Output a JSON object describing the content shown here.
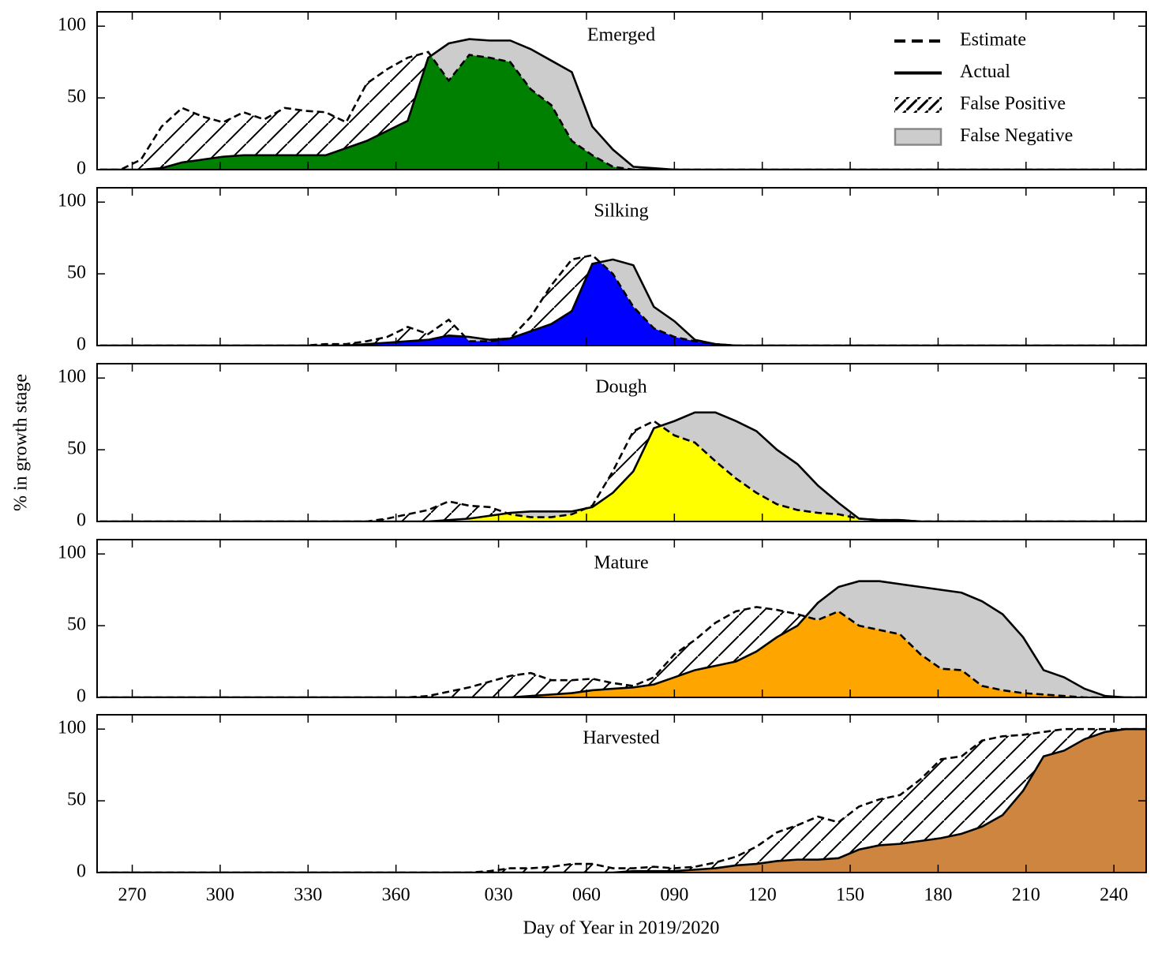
{
  "chart_data": [
    {
      "type": "area",
      "title": "Emerged",
      "color": "#008000",
      "xlim": [
        258,
        616
      ],
      "ylim": [
        0,
        110
      ],
      "yticks": [
        0,
        50,
        100
      ],
      "legend": "upper right",
      "fill_legend": [
        "False Positive",
        "False Negative"
      ],
      "x": [
        259,
        266,
        273,
        280,
        287,
        294,
        301,
        308,
        315,
        322,
        329,
        336,
        343,
        350,
        357,
        364,
        371,
        378,
        385,
        392,
        399,
        406,
        413,
        420,
        427,
        434,
        441,
        448,
        455,
        462,
        469,
        476,
        483,
        490,
        497,
        504,
        511,
        518,
        525,
        532,
        539,
        546,
        553,
        560,
        567,
        574,
        581,
        588,
        595,
        602,
        609,
        616
      ],
      "series": [
        {
          "name": "Estimate",
          "color": "#000000",
          "values": [
            0,
            0,
            7,
            30,
            43,
            37,
            33,
            40,
            35,
            43,
            41,
            40,
            33,
            60,
            70,
            78,
            82,
            62,
            80,
            78,
            75,
            56,
            45,
            20,
            10,
            2,
            0,
            0,
            0,
            0,
            0,
            0,
            0,
            0,
            0,
            0,
            0,
            0,
            0,
            0,
            0,
            0,
            0,
            0,
            0,
            0,
            0,
            0,
            0,
            0,
            0,
            0
          ]
        },
        {
          "name": "Actual",
          "color": "#000000",
          "values": [
            0,
            0,
            0,
            1,
            5,
            7,
            9,
            10,
            10,
            10,
            10,
            10,
            15,
            20,
            27,
            34,
            78,
            88,
            91,
            90,
            90,
            84,
            76,
            68,
            30,
            14,
            2,
            1,
            0,
            0,
            0,
            0,
            0,
            0,
            0,
            0,
            0,
            0,
            0,
            0,
            0,
            0,
            0,
            0,
            0,
            0,
            0,
            0,
            0,
            0,
            0,
            0
          ]
        }
      ]
    },
    {
      "type": "area",
      "title": "Silking",
      "color": "#0000ff",
      "xlim": [
        258,
        616
      ],
      "ylim": [
        0,
        110
      ],
      "yticks": [
        0,
        50,
        100
      ],
      "x": [
        259,
        266,
        273,
        280,
        287,
        294,
        301,
        308,
        315,
        322,
        329,
        336,
        343,
        350,
        357,
        364,
        371,
        378,
        385,
        392,
        399,
        406,
        413,
        420,
        427,
        434,
        441,
        448,
        455,
        462,
        469,
        476,
        483,
        490,
        497,
        504,
        511,
        518,
        525,
        532,
        539,
        546,
        553,
        560,
        567,
        574,
        581,
        588,
        595,
        602,
        609,
        616
      ],
      "series": [
        {
          "color": "#000000",
          "values": [
            0,
            0,
            0,
            0,
            0,
            0,
            0,
            0,
            0,
            0,
            0,
            1,
            1,
            3,
            6,
            13,
            8,
            18,
            3,
            3,
            5,
            20,
            42,
            60,
            63,
            50,
            27,
            12,
            6,
            3,
            1,
            0,
            0,
            0,
            0,
            0,
            0,
            0,
            0,
            0,
            0,
            0,
            0,
            0,
            0,
            0,
            0,
            0,
            0,
            0,
            0,
            0
          ]
        },
        {
          "color": "#000000",
          "values": [
            0,
            0,
            0,
            0,
            0,
            0,
            0,
            0,
            0,
            0,
            0,
            0,
            0,
            1,
            2,
            3,
            4,
            7,
            6,
            4,
            5,
            10,
            15,
            24,
            57,
            60,
            56,
            27,
            17,
            4,
            1,
            0,
            0,
            0,
            0,
            0,
            0,
            0,
            0,
            0,
            0,
            0,
            0,
            0,
            0,
            0,
            0,
            0,
            0,
            0,
            0,
            0
          ]
        }
      ]
    },
    {
      "type": "area",
      "title": "Dough",
      "color": "#ffff00",
      "xlim": [
        258,
        616
      ],
      "ylim": [
        0,
        110
      ],
      "yticks": [
        0,
        50,
        100
      ],
      "ylabel": "% in growth stage",
      "x": [
        259,
        266,
        273,
        280,
        287,
        294,
        301,
        308,
        315,
        322,
        329,
        336,
        343,
        350,
        357,
        364,
        371,
        378,
        385,
        392,
        399,
        406,
        413,
        420,
        427,
        434,
        441,
        448,
        455,
        462,
        469,
        476,
        483,
        490,
        497,
        504,
        511,
        518,
        525,
        532,
        539,
        546,
        553,
        560,
        567,
        574,
        581,
        588,
        595,
        602,
        609,
        616
      ],
      "series": [
        {
          "color": "#000000",
          "values": [
            0,
            0,
            0,
            0,
            0,
            0,
            0,
            0,
            0,
            0,
            0,
            0,
            0,
            0,
            2,
            5,
            8,
            14,
            11,
            10,
            5,
            3,
            3,
            5,
            11,
            35,
            63,
            70,
            60,
            55,
            42,
            30,
            20,
            12,
            8,
            6,
            5,
            2,
            1,
            1,
            0,
            0,
            0,
            0,
            0,
            0,
            0,
            0,
            0,
            0,
            0,
            0
          ]
        },
        {
          "color": "#000000",
          "values": [
            0,
            0,
            0,
            0,
            0,
            0,
            0,
            0,
            0,
            0,
            0,
            0,
            0,
            0,
            0,
            0,
            0,
            1,
            2,
            4,
            6,
            7,
            7,
            7,
            10,
            20,
            35,
            65,
            70,
            76,
            76,
            70,
            63,
            50,
            40,
            25,
            13,
            2,
            1,
            1,
            0,
            0,
            0,
            0,
            0,
            0,
            0,
            0,
            0,
            0,
            0,
            0
          ]
        }
      ]
    },
    {
      "type": "area",
      "title": "Mature",
      "color": "#ffa500",
      "xlim": [
        258,
        616
      ],
      "ylim": [
        0,
        110
      ],
      "yticks": [
        0,
        50,
        100
      ],
      "x": [
        259,
        266,
        273,
        280,
        287,
        294,
        301,
        308,
        315,
        322,
        329,
        336,
        343,
        350,
        357,
        364,
        371,
        378,
        385,
        392,
        399,
        406,
        413,
        420,
        427,
        434,
        441,
        448,
        455,
        462,
        469,
        476,
        483,
        490,
        497,
        504,
        511,
        518,
        525,
        532,
        539,
        546,
        553,
        560,
        567,
        574,
        581,
        588,
        595,
        602,
        609,
        616
      ],
      "series": [
        {
          "color": "#000000",
          "values": [
            0,
            0,
            0,
            0,
            0,
            0,
            0,
            0,
            0,
            0,
            0,
            0,
            0,
            0,
            0,
            0,
            1,
            4,
            7,
            11,
            15,
            17,
            12,
            12,
            13,
            10,
            8,
            14,
            30,
            40,
            52,
            60,
            63,
            61,
            58,
            54,
            60,
            50,
            47,
            44,
            30,
            20,
            19,
            8,
            5,
            3,
            2,
            1,
            0,
            0,
            0,
            0
          ]
        },
        {
          "color": "#000000",
          "values": [
            0,
            0,
            0,
            0,
            0,
            0,
            0,
            0,
            0,
            0,
            0,
            0,
            0,
            0,
            0,
            0,
            0,
            0,
            0,
            0,
            0,
            1,
            2,
            3,
            5,
            6,
            7,
            9,
            14,
            19,
            22,
            25,
            32,
            42,
            50,
            66,
            77,
            81,
            81,
            79,
            77,
            75,
            73,
            67,
            58,
            42,
            19,
            14,
            6,
            1,
            0,
            0
          ]
        }
      ]
    },
    {
      "type": "area",
      "title": "Harvested",
      "color": "#cd853f",
      "xlim": [
        258,
        616
      ],
      "ylim": [
        0,
        110
      ],
      "yticks": [
        0,
        50,
        100
      ],
      "xlabel": "Day of Year in 2019/2020",
      "xticks": [
        270,
        300,
        330,
        360,
        {
          "value": 395,
          "label": "030"
        },
        {
          "value": 425,
          "label": "060"
        },
        {
          "value": 455,
          "label": "090"
        },
        {
          "value": 485,
          "label": "120"
        },
        {
          "value": 515,
          "label": "150"
        },
        {
          "value": 545,
          "label": "180"
        },
        {
          "value": 575,
          "label": "210"
        },
        {
          "value": 605,
          "label": "240"
        }
      ],
      "x": [
        259,
        266,
        273,
        280,
        287,
        294,
        301,
        308,
        315,
        322,
        329,
        336,
        343,
        350,
        357,
        364,
        371,
        378,
        385,
        392,
        399,
        406,
        413,
        420,
        427,
        434,
        441,
        448,
        455,
        462,
        469,
        476,
        483,
        490,
        497,
        504,
        511,
        518,
        525,
        532,
        539,
        546,
        553,
        560,
        567,
        574,
        581,
        588,
        595,
        602,
        609,
        616
      ],
      "series": [
        {
          "color": "#000000",
          "values": [
            0,
            0,
            0,
            0,
            0,
            0,
            0,
            0,
            0,
            0,
            0,
            0,
            0,
            0,
            0,
            0,
            0,
            0,
            0,
            1,
            3,
            3,
            4,
            6,
            6,
            3,
            3,
            4,
            3,
            4,
            7,
            11,
            18,
            28,
            33,
            39,
            35,
            46,
            51,
            54,
            65,
            79,
            81,
            92,
            95,
            96,
            98,
            100,
            100,
            100,
            100,
            100
          ]
        },
        {
          "color": "#000000",
          "values": [
            0,
            0,
            0,
            0,
            0,
            0,
            0,
            0,
            0,
            0,
            0,
            0,
            0,
            0,
            0,
            0,
            0,
            0,
            0,
            0,
            0,
            0,
            0,
            0,
            0,
            0,
            1,
            1,
            1,
            2,
            3,
            5,
            6,
            8,
            9,
            9,
            10,
            16,
            19,
            20,
            22,
            24,
            27,
            32,
            40,
            57,
            81,
            85,
            93,
            98,
            100,
            100
          ]
        }
      ]
    }
  ]
}
